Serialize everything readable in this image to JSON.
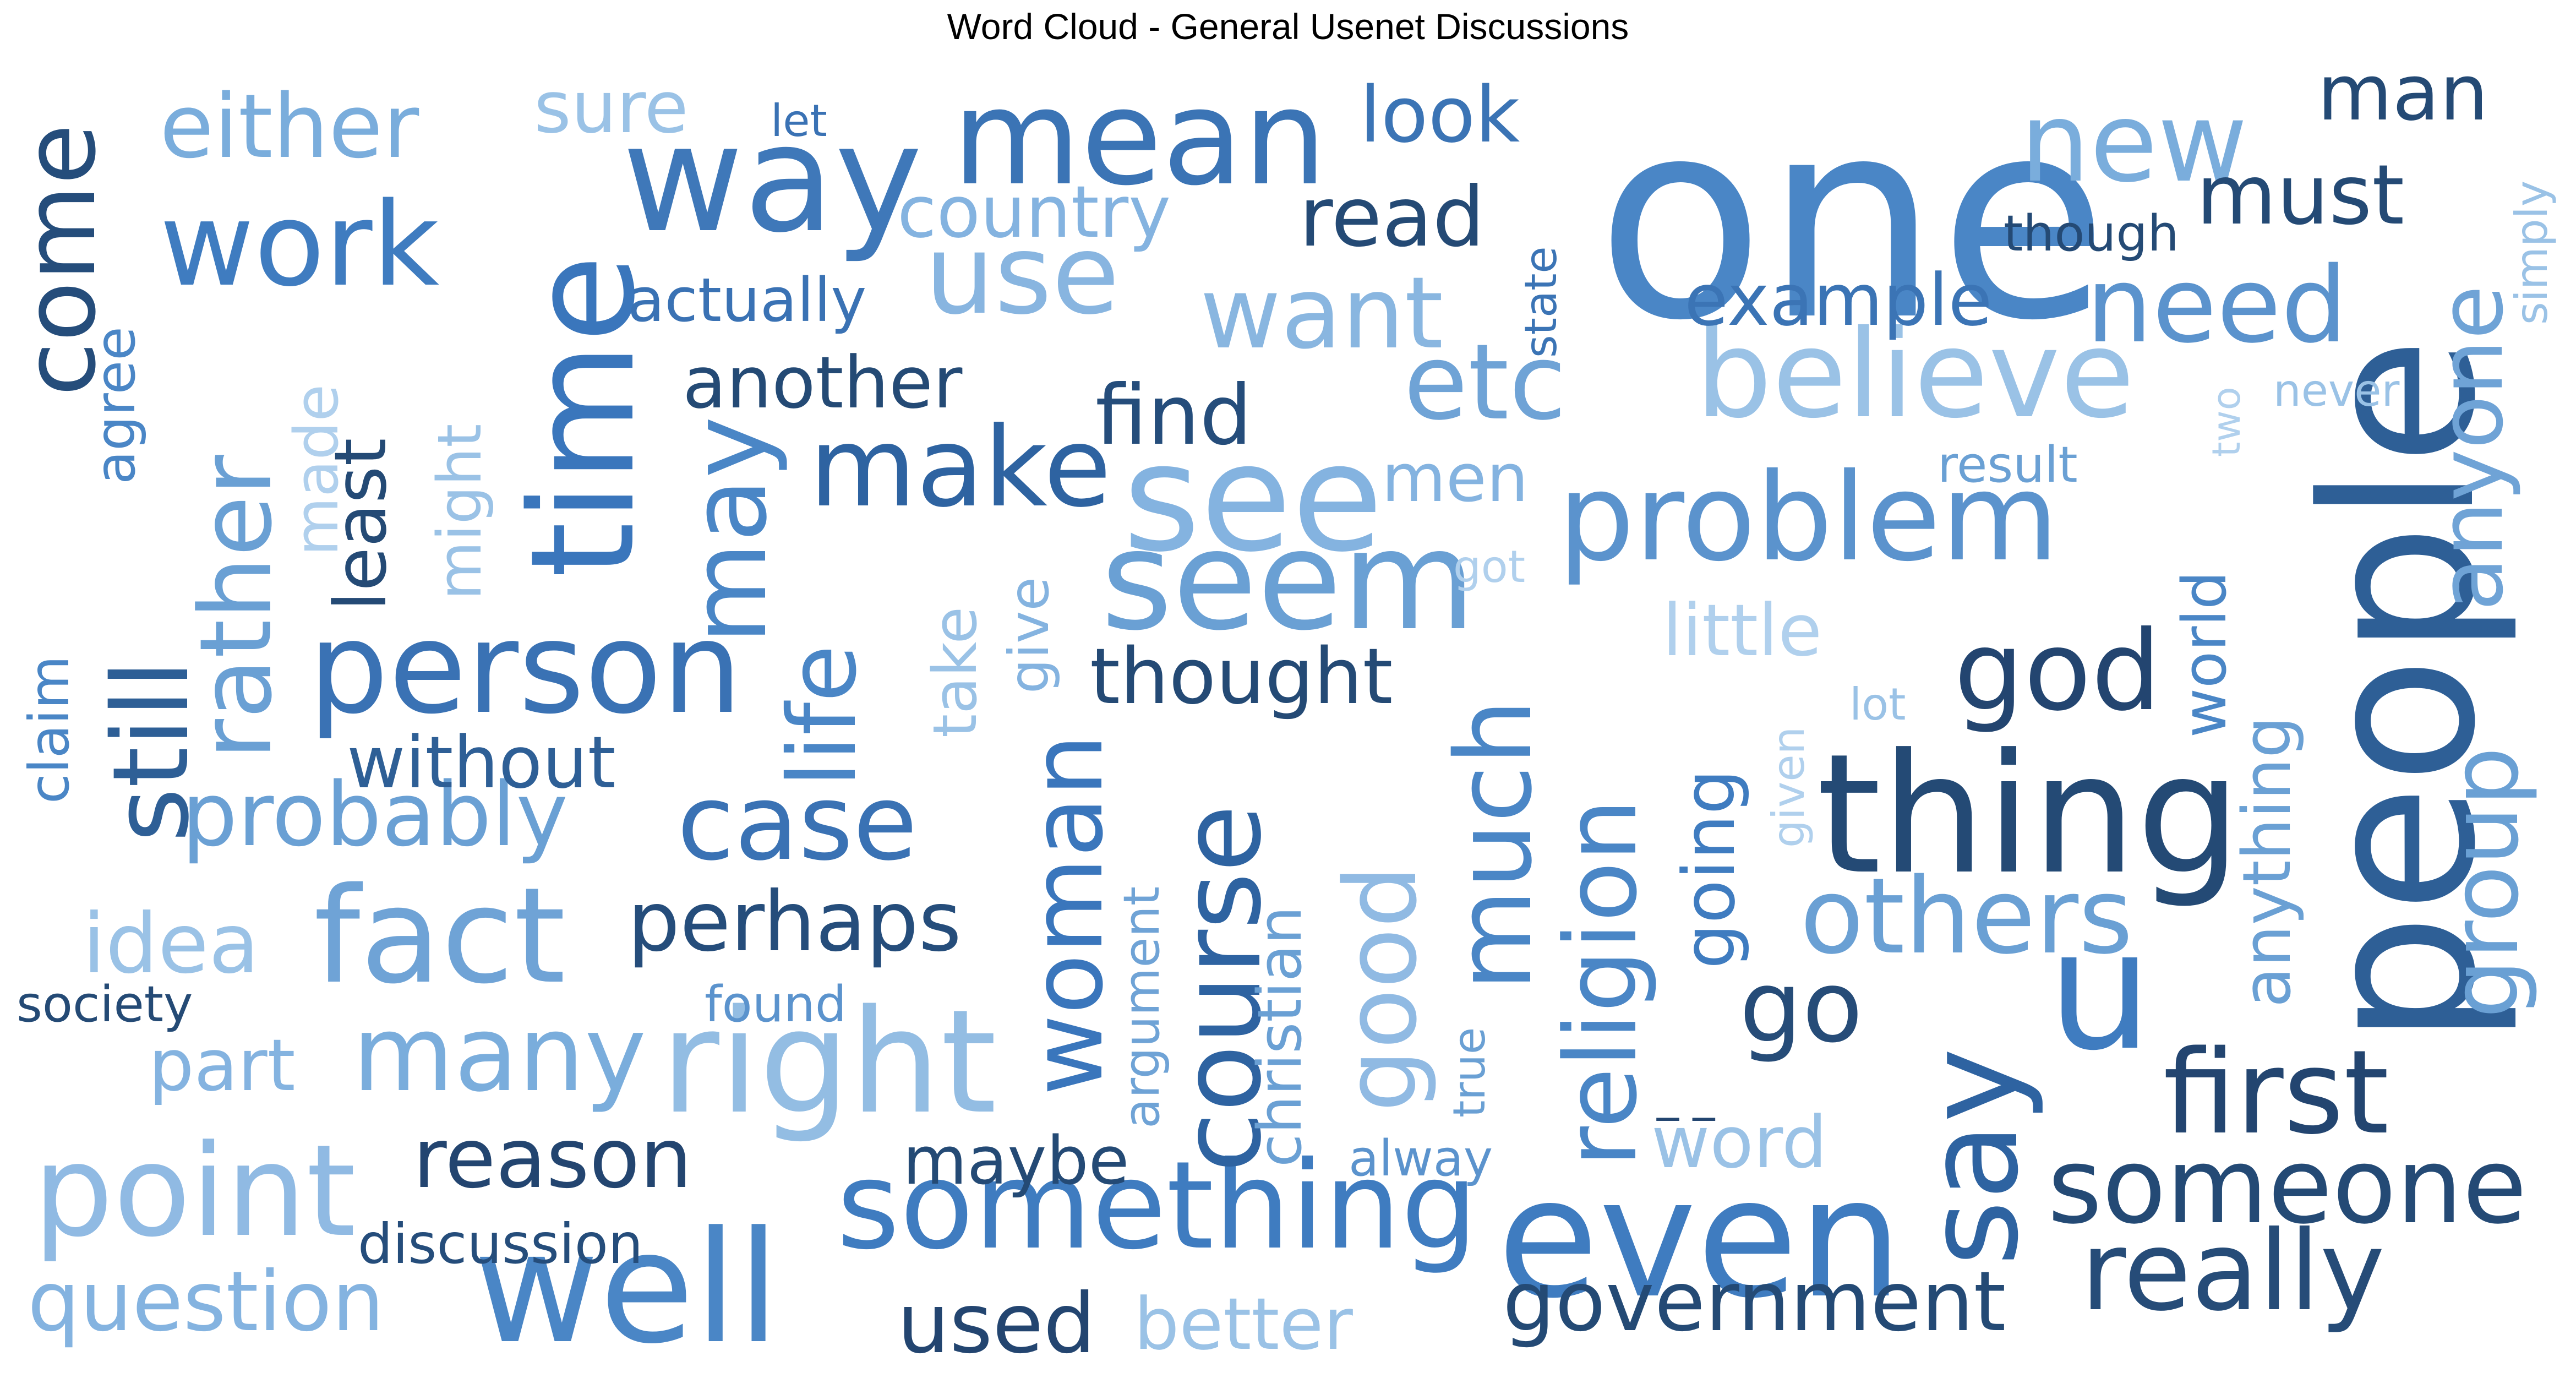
{
  "title": "Word Cloud - General Usenet Discussions",
  "words": [
    {
      "text": "one",
      "color": "#4a86c6"
    },
    {
      "text": "people",
      "color": "#2e5f96"
    },
    {
      "text": "even",
      "color": "#3f7cc0"
    },
    {
      "text": "thing",
      "color": "#244a75"
    },
    {
      "text": "u",
      "color": "#3f7cc0"
    },
    {
      "text": "say",
      "color": "#2e63a1"
    },
    {
      "text": "way",
      "color": "#3f78b9"
    },
    {
      "text": "mean",
      "color": "#3b74b5"
    },
    {
      "text": "time",
      "color": "#3a76bc"
    },
    {
      "text": "well",
      "color": "#4a86c6"
    },
    {
      "text": "seem",
      "color": "#6aa0d4"
    },
    {
      "text": "see",
      "color": "#84b3e0"
    },
    {
      "text": "right",
      "color": "#93bde3"
    },
    {
      "text": "something",
      "color": "#3f7cc0"
    },
    {
      "text": "believe",
      "color": "#9ac2e6"
    },
    {
      "text": "problem",
      "color": "#5b93cd"
    },
    {
      "text": "fact",
      "color": "#6fa3d6"
    },
    {
      "text": "person",
      "color": "#3a72b4"
    },
    {
      "text": "point",
      "color": "#90bae3"
    },
    {
      "text": "really",
      "color": "#264c78"
    },
    {
      "text": "first",
      "color": "#234570"
    },
    {
      "text": "someone",
      "color": "#244a75"
    },
    {
      "text": "god",
      "color": "#234570"
    },
    {
      "text": "work",
      "color": "#3f7cc0"
    },
    {
      "text": "new",
      "color": "#7aaddc"
    },
    {
      "text": "need",
      "color": "#5b93cd"
    },
    {
      "text": "want",
      "color": "#89b6e0"
    },
    {
      "text": "use",
      "color": "#88b5e0"
    },
    {
      "text": "make",
      "color": "#2e63a1"
    },
    {
      "text": "case",
      "color": "#3a72b4"
    },
    {
      "text": "many",
      "color": "#7aaddc"
    },
    {
      "text": "others",
      "color": "#6aa0d4"
    },
    {
      "text": "go",
      "color": "#264c78"
    },
    {
      "text": "much",
      "color": "#4a86c6"
    },
    {
      "text": "religion",
      "color": "#4a86c6"
    },
    {
      "text": "course",
      "color": "#2e63a1"
    },
    {
      "text": "woman",
      "color": "#3a76bc"
    },
    {
      "text": "good",
      "color": "#90bae3"
    },
    {
      "text": "etc",
      "color": "#6fa3d6"
    },
    {
      "text": "may",
      "color": "#4a86c6"
    },
    {
      "text": "life",
      "color": "#4a86c6"
    },
    {
      "text": "still",
      "color": "#2e5f96"
    },
    {
      "text": "rather",
      "color": "#6aa0d4"
    },
    {
      "text": "come",
      "color": "#254d7b"
    },
    {
      "text": "either",
      "color": "#7aaddc"
    },
    {
      "text": "must",
      "color": "#244a75"
    },
    {
      "text": "man",
      "color": "#244a75"
    },
    {
      "text": "anyone",
      "color": "#6fa3d6"
    },
    {
      "text": "group",
      "color": "#6aa0d4"
    },
    {
      "text": "question",
      "color": "#84b3e0"
    },
    {
      "text": "government",
      "color": "#244a75"
    },
    {
      "text": "used",
      "color": "#234570"
    },
    {
      "text": "better",
      "color": "#9ac2e6"
    },
    {
      "text": "reason",
      "color": "#234570"
    },
    {
      "text": "probably",
      "color": "#6aa0d4"
    },
    {
      "text": "perhaps",
      "color": "#254d7b"
    },
    {
      "text": "idea",
      "color": "#9ac2e6"
    },
    {
      "text": "part",
      "color": "#84b3e0"
    },
    {
      "text": "look",
      "color": "#3b74b5"
    },
    {
      "text": "read",
      "color": "#244a75"
    },
    {
      "text": "find",
      "color": "#254d7b"
    },
    {
      "text": "country",
      "color": "#84b3e0"
    },
    {
      "text": "sure",
      "color": "#9ac2e6"
    },
    {
      "text": "another",
      "color": "#244a75"
    },
    {
      "text": "example",
      "color": "#3b74b5"
    },
    {
      "text": "thought",
      "color": "#244a75"
    },
    {
      "text": "without",
      "color": "#2e5f96"
    },
    {
      "text": "maybe",
      "color": "#244a75"
    },
    {
      "text": "word",
      "color": "#9ac2e6"
    },
    {
      "text": "little",
      "color": "#b0d0ed"
    },
    {
      "text": "going",
      "color": "#3f7cc0"
    },
    {
      "text": "anything",
      "color": "#6aa0d4"
    },
    {
      "text": "world",
      "color": "#4a86c6"
    },
    {
      "text": "christian",
      "color": "#6aa0d4"
    },
    {
      "text": "least",
      "color": "#244a75"
    },
    {
      "text": "might",
      "color": "#9ac2e6"
    },
    {
      "text": "made",
      "color": "#b0d0ed"
    },
    {
      "text": "agree",
      "color": "#4a86c6"
    },
    {
      "text": "claim",
      "color": "#4a86c6"
    },
    {
      "text": "take",
      "color": "#9ac2e6"
    },
    {
      "text": "give",
      "color": "#84b3e0"
    },
    {
      "text": "actually",
      "color": "#3a72b4"
    },
    {
      "text": "discussion",
      "color": "#254d7b"
    },
    {
      "text": "society",
      "color": "#244a75"
    },
    {
      "text": "found",
      "color": "#5b93cd"
    },
    {
      "text": "argument",
      "color": "#6fa3d6"
    },
    {
      "text": "true",
      "color": "#6aa0d4"
    },
    {
      "text": "alway",
      "color": "#5b93cd"
    },
    {
      "text": "men",
      "color": "#84b3e0"
    },
    {
      "text": "got",
      "color": "#b0d0ed"
    },
    {
      "text": "lot",
      "color": "#9ac2e6"
    },
    {
      "text": "given",
      "color": "#b0d0ed"
    },
    {
      "text": "though",
      "color": "#244a75"
    },
    {
      "text": "let",
      "color": "#3a72b4"
    },
    {
      "text": "state",
      "color": "#3b74b5"
    },
    {
      "text": "result",
      "color": "#6aa0d4"
    },
    {
      "text": "never",
      "color": "#9ac2e6"
    },
    {
      "text": "two",
      "color": "#b0d0ed"
    },
    {
      "text": "simply",
      "color": "#9ac2e6"
    },
    {
      "text": "_ _",
      "color": "#234570"
    }
  ]
}
